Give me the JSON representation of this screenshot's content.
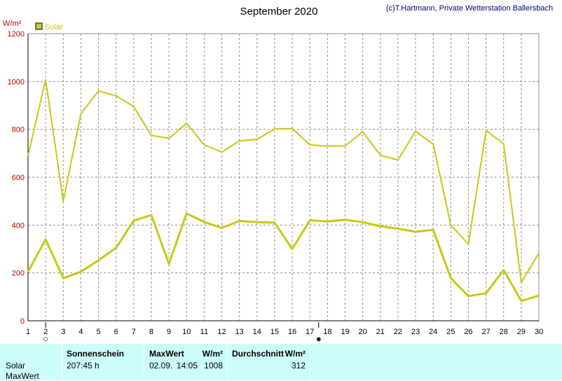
{
  "header": {
    "title": "September 2020",
    "copyright": "(c)T.Hartmann, Private Wetterstation Ballersbach"
  },
  "colors": {
    "series": "#c8c814",
    "legend_swatch": "#c8c832",
    "axis_text_red": "#c00000",
    "grid": "#909090",
    "table_bg": "#ccfcfc",
    "copyright_text": "#000080"
  },
  "chart_data": {
    "type": "line",
    "ylabel": "W/m²",
    "ylim": [
      0,
      1200
    ],
    "yticks": [
      0,
      200,
      400,
      600,
      800,
      1000,
      1200
    ],
    "x": [
      1,
      2,
      3,
      4,
      5,
      6,
      7,
      8,
      9,
      10,
      11,
      12,
      13,
      14,
      15,
      16,
      17,
      18,
      19,
      20,
      21,
      22,
      23,
      24,
      25,
      26,
      27,
      28,
      29,
      30
    ],
    "legend": [
      "Solar"
    ],
    "legend_position": "top-left",
    "grid": true,
    "series": [
      {
        "name": "Solar",
        "values": [
          690,
          1008,
          500,
          865,
          960,
          940,
          895,
          775,
          762,
          825,
          735,
          705,
          752,
          758,
          802,
          803,
          735,
          730,
          730,
          790,
          692,
          672,
          792,
          738,
          400,
          320,
          795,
          740,
          160,
          283
        ]
      },
      {
        "name": "Solar",
        "values": [
          205,
          340,
          178,
          205,
          253,
          305,
          418,
          442,
          238,
          448,
          413,
          388,
          417,
          412,
          410,
          300,
          420,
          415,
          422,
          412,
          395,
          385,
          372,
          380,
          178,
          103,
          115,
          212,
          83,
          105
        ]
      }
    ],
    "markers": [
      {
        "day": 2,
        "symbol": "full-moon-icon",
        "glyph": "○"
      },
      {
        "day": 17.5,
        "symbol": "new-moon-icon",
        "glyph": "●"
      }
    ]
  },
  "summary": {
    "row_labels": [
      "Solar",
      "MaxWert"
    ],
    "sunshine": {
      "header": "Sonnenschein",
      "value": "207:45 h"
    },
    "maxwert": {
      "header": "MaxWert",
      "unit": "W/m²",
      "date": "02.09.",
      "time": "14:05",
      "value": "1008"
    },
    "average": {
      "header": "Durchschnitt",
      "unit": "W/m²",
      "value": "312"
    }
  }
}
